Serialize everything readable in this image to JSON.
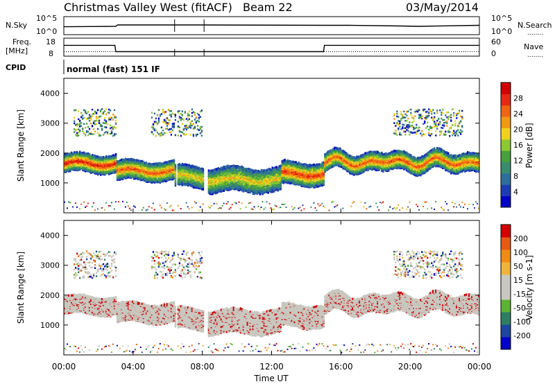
{
  "header": {
    "station": "Christmas Valley West (fitACF)",
    "beam": "Beam 22",
    "date": "03/May/2014"
  },
  "panel_labels": {
    "nsky": "N.Sky",
    "nsearch": "N.Search",
    "freq": "Freq.",
    "freq_unit": "[MHz]",
    "nave": "Nave",
    "cpid": "CPID",
    "cpid_text": "normal (fast) 151 IF",
    "dots": "........"
  },
  "colors": {
    "power_scale": [
      "#0000c8",
      "#1e3cb4",
      "#2e6e9a",
      "#3a8c6e",
      "#46a03c",
      "#8cc832",
      "#f0d21e",
      "#f09a14",
      "#f06414",
      "#e62814",
      "#d20000"
    ],
    "velocity_scale": [
      "#0000c8",
      "#1e46a0",
      "#2e7e64",
      "#5ab432",
      "#c8c8c0",
      "#c8c8c0",
      "#f0b43c",
      "#f08c14",
      "#e65a14",
      "#d20000"
    ],
    "scatter_gray": "#c8c8c0"
  },
  "chart_data": [
    {
      "type": "line",
      "panel": "noise",
      "series": [
        {
          "name": "N.Sky",
          "segments": [
            [
              0.0,
              2.2
            ],
            [
              3.0,
              2.3
            ],
            [
              3.1,
              2.7
            ],
            [
              6.5,
              2.7
            ],
            [
              8.0,
              2.7
            ],
            [
              15.0,
              2.6
            ],
            [
              16.5,
              2.6
            ],
            [
              19.5,
              2.4
            ],
            [
              20.5,
              2.3
            ],
            [
              24.0,
              2.6
            ]
          ]
        }
      ],
      "yticks_left": [
        "10^5",
        "10^0"
      ],
      "yticks_right": [
        "10^5",
        "10^0"
      ]
    },
    {
      "type": "line",
      "panel": "frequency",
      "series": [
        {
          "name": "Freq",
          "values": [
            [
              0.0,
              14.0
            ],
            [
              2.95,
              14.0
            ],
            [
              3.0,
              10.5
            ],
            [
              15.0,
              10.5
            ],
            [
              15.05,
              14.0
            ],
            [
              24.0,
              14.0
            ]
          ]
        },
        {
          "name": "Nave",
          "values": [
            [
              0.0,
              15.0
            ],
            [
              24.0,
              15.0
            ]
          ]
        }
      ],
      "yticks_left": [
        "18",
        "8"
      ],
      "yticks_right": [
        "60",
        "0"
      ]
    },
    {
      "type": "heatmap",
      "panel": "power",
      "ylabel": "Slant Range [km]",
      "ylim": [
        0,
        4500
      ],
      "yticks": [
        "1000",
        "2000",
        "3000",
        "4000"
      ],
      "colorbar_label": "Power [dB]",
      "colorbar_ticks": [
        "28",
        "24",
        "20",
        "16",
        "12",
        "8",
        "4"
      ],
      "features": [
        {
          "t0": 0.0,
          "t1": 3.0,
          "r": 1700,
          "w": 300,
          "level": 0.85
        },
        {
          "t0": 3.0,
          "t1": 6.4,
          "r": 1450,
          "w": 320,
          "level": 0.75
        },
        {
          "t0": 6.4,
          "t1": 8.1,
          "r": 1250,
          "w": 350,
          "level": 0.55
        },
        {
          "t0": 8.3,
          "t1": 12.5,
          "r": 1150,
          "w": 400,
          "level": 0.55
        },
        {
          "t0": 12.5,
          "t1": 15.0,
          "r": 1350,
          "w": 380,
          "level": 0.8
        },
        {
          "t0": 15.0,
          "t1": 24.0,
          "r": 1750,
          "w": 300,
          "level": 0.75
        }
      ]
    },
    {
      "type": "heatmap",
      "panel": "velocity",
      "ylabel": "Slant Range [km]",
      "ylim": [
        0,
        4500
      ],
      "yticks": [
        "1000",
        "2000",
        "3000",
        "4000"
      ],
      "colorbar_label": "Velocity [m s-1]",
      "colorbar_ticks": [
        "200",
        "100",
        "50",
        "15",
        "-15",
        "-50",
        "-100",
        "-200"
      ],
      "xlabel": "Time UT",
      "xticks": [
        "00:00",
        "04:00",
        "08:00",
        "12:00",
        "16:00",
        "20:00",
        "00:00"
      ],
      "xlim": [
        0,
        24
      ]
    }
  ]
}
